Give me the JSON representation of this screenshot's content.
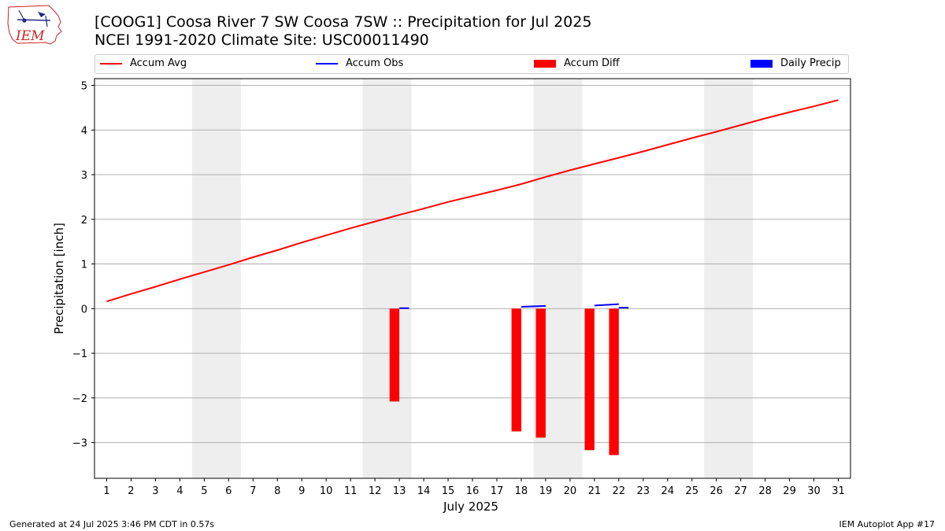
{
  "header": {
    "title_line1": "[COOG1] Coosa River 7 SW Coosa 7SW :: Precipitation for Jul 2025",
    "title_line2": "NCEI 1991-2020 Climate Site: USC00011490",
    "logo_text": "IEM"
  },
  "footer": {
    "generated": "Generated at 24 Jul 2025 3:46 PM CDT in 0.57s",
    "app": "IEM Autoplot App #17"
  },
  "legend": {
    "accum_avg": "Accum Avg",
    "accum_obs": "Accum Obs",
    "accum_diff": "Accum Diff",
    "daily_precip": "Daily Precip"
  },
  "colors": {
    "avg": "#ff0000",
    "obs": "#0000ff",
    "diff": "#ff0000",
    "daily": "#0000ff",
    "weekend": "#eeeeee",
    "grid": "#b0b0b0"
  },
  "chart_data": {
    "type": "line",
    "xlabel": "July 2025",
    "ylabel": "Precipitation [inch]",
    "xlim": [
      0.5,
      31.5
    ],
    "ylim": [
      -3.8,
      5.15
    ],
    "x_ticks": [
      1,
      2,
      3,
      4,
      5,
      6,
      7,
      8,
      9,
      10,
      11,
      12,
      13,
      14,
      15,
      16,
      17,
      18,
      19,
      20,
      21,
      22,
      23,
      24,
      25,
      26,
      27,
      28,
      29,
      30,
      31
    ],
    "y_ticks": [
      5,
      4,
      3,
      2,
      1,
      0,
      -1,
      -2,
      -3
    ],
    "y_tick_labels": [
      "5",
      "4",
      "3",
      "2",
      "1",
      "0",
      "−1",
      "−2",
      "−3"
    ],
    "grid": "horizontal",
    "weekend_bands": [
      [
        4.5,
        6.5
      ],
      [
        11.5,
        13.5
      ],
      [
        18.5,
        20.5
      ],
      [
        25.5,
        27.5
      ]
    ],
    "series": [
      {
        "name": "Accum Avg",
        "x": [
          1,
          2,
          3,
          4,
          5,
          6,
          7,
          8,
          9,
          10,
          11,
          12,
          13,
          14,
          15,
          16,
          17,
          18,
          19,
          20,
          21,
          22,
          23,
          24,
          25,
          26,
          27,
          28,
          29,
          30,
          31
        ],
        "values": [
          0.16,
          0.33,
          0.49,
          0.66,
          0.82,
          0.98,
          1.15,
          1.31,
          1.48,
          1.64,
          1.8,
          1.95,
          2.1,
          2.24,
          2.39,
          2.52,
          2.65,
          2.79,
          2.95,
          3.1,
          3.24,
          3.38,
          3.52,
          3.67,
          3.82,
          3.96,
          4.11,
          4.26,
          4.4,
          4.53,
          4.67
        ]
      },
      {
        "name": "Accum Obs",
        "segments": [
          {
            "x": [
              13.0,
              13.4
            ],
            "values": [
              0.01,
              0.01
            ]
          },
          {
            "x": [
              18.0,
              19.0
            ],
            "values": [
              0.04,
              0.06
            ]
          },
          {
            "x": [
              21.0,
              22.0
            ],
            "values": [
              0.07,
              0.1
            ]
          },
          {
            "x": [
              22.0,
              22.4
            ],
            "values": [
              0.02,
              0.02
            ]
          }
        ]
      },
      {
        "name": "Accum Diff",
        "x": [
          12.8,
          17.8,
          18.8,
          20.8,
          21.8
        ],
        "values": [
          -2.08,
          -2.75,
          -2.89,
          -3.17,
          -3.28
        ]
      },
      {
        "name": "Daily Precip",
        "x": [],
        "values": []
      }
    ]
  }
}
